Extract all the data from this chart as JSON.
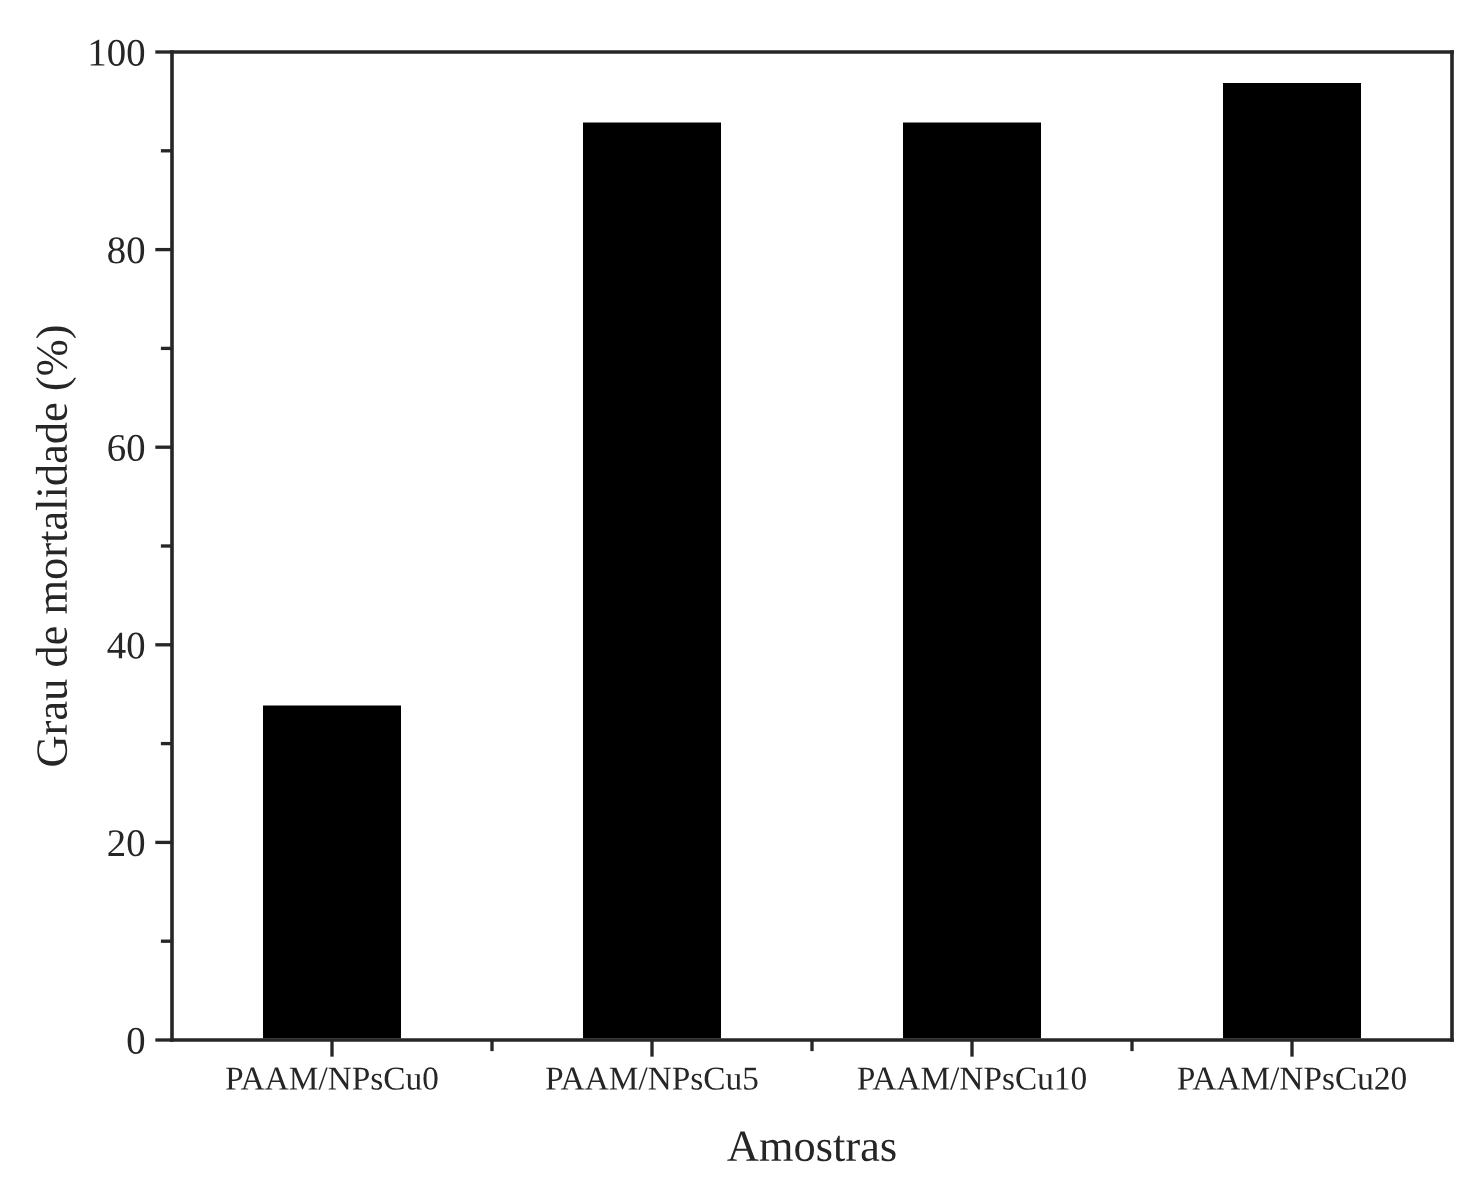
{
  "chart_data": {
    "type": "bar",
    "xlabel": "Amostras",
    "ylabel": "Grau de mortalidade (%)",
    "categories": [
      "PAAM/NPsCu0",
      "PAAM/NPsCu5",
      "PAAM/NPsCu10",
      "PAAM/NPsCu20"
    ],
    "values": [
      34,
      93,
      93,
      97
    ],
    "color": "#000000",
    "ylim": [
      0,
      100
    ],
    "yticks": [
      0,
      20,
      40,
      60,
      80,
      100
    ]
  }
}
